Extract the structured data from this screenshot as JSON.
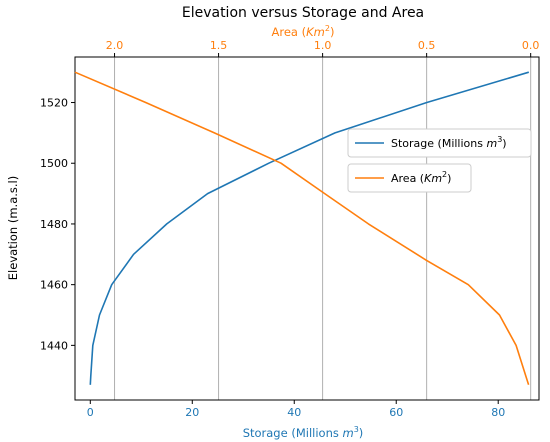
{
  "chart_data": {
    "type": "line",
    "title": "Elevation versus Storage and Area",
    "ylabel": "Elevation (m.a.s.l)",
    "ylim": [
      1422,
      1535
    ],
    "y_ticks": [
      "1440",
      "1460",
      "1480",
      "1500",
      "1520"
    ],
    "grid": "vertical lines at top-axis (Area) ticks",
    "legend_placement": "center-right",
    "axes": {
      "bottom": {
        "label_text": "Storage (Millions ",
        "label_unit": "m",
        "label_exp": "3",
        "label_close": ")",
        "range": [
          -3,
          88
        ],
        "ticks": [
          "0",
          "20",
          "40",
          "60",
          "80"
        ],
        "color": "#1f77b4"
      },
      "top": {
        "label_text": "Area (",
        "label_unit": "Km",
        "label_exp": "2",
        "label_close": ")",
        "range": [
          2.19,
          -0.04
        ],
        "ticks": [
          "2.0",
          "1.5",
          "1.0",
          "0.5",
          "0.0"
        ],
        "color": "#ff7f0e"
      }
    },
    "series": [
      {
        "name_text": "Storage (Millions ",
        "name_unit": "m",
        "name_exp": "3",
        "name_close": ")",
        "axis": "bottom",
        "color": "#1f77b4",
        "points": [
          [
            0,
            1427
          ],
          [
            0.1,
            1430
          ],
          [
            0.5,
            1440
          ],
          [
            1.8,
            1450
          ],
          [
            4.2,
            1460
          ],
          [
            8.5,
            1470
          ],
          [
            15,
            1480
          ],
          [
            23,
            1490
          ],
          [
            35,
            1500
          ],
          [
            48,
            1510
          ],
          [
            66,
            1520
          ],
          [
            86,
            1530
          ]
        ]
      },
      {
        "name_text": "Area (",
        "name_unit": "Km",
        "name_exp": "2",
        "name_close": ")",
        "axis": "top",
        "color": "#ff7f0e",
        "points": [
          [
            2.19,
            1530
          ],
          [
            1.85,
            1520
          ],
          [
            1.52,
            1510
          ],
          [
            1.2,
            1500
          ],
          [
            0.99,
            1490
          ],
          [
            0.78,
            1480
          ],
          [
            0.5,
            1468
          ],
          [
            0.3,
            1460
          ],
          [
            0.15,
            1450
          ],
          [
            0.07,
            1440
          ],
          [
            0.01,
            1427
          ]
        ]
      }
    ]
  }
}
